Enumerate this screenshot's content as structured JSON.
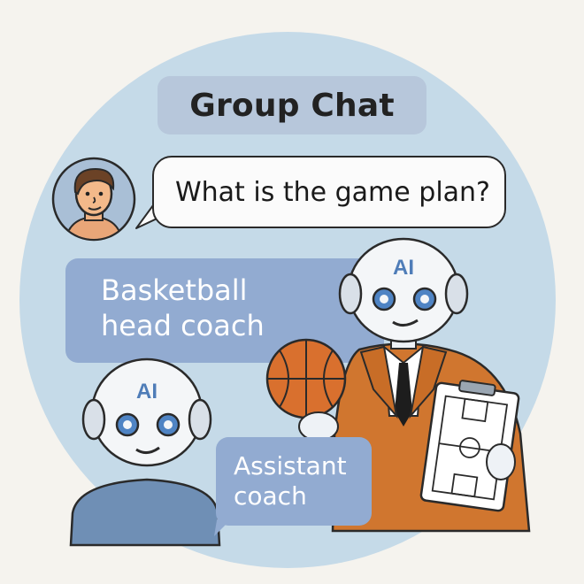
{
  "header": {
    "title": "Group Chat"
  },
  "messages": [
    {
      "sender": "user",
      "text": "What is the game plan?"
    },
    {
      "sender": "head-coach",
      "text": "Basketball head coach"
    },
    {
      "sender": "assistant-coach",
      "text": "Assistant coach"
    }
  ],
  "robots": {
    "head_coach_badge": "AI",
    "assistant_badge": "AI"
  },
  "colors": {
    "background": "#f5f3ee",
    "circle": "#c5dae8",
    "title_pill": "#b7c7db",
    "bot_bubble": "#92abd1",
    "suit": "#d0762f",
    "basketball": "#d9702e",
    "shirt": "#6f8fb5"
  },
  "icons": [
    "user-avatar-icon",
    "robot-head-coach-icon",
    "robot-assistant-icon",
    "basketball-icon",
    "clipboard-court-icon"
  ]
}
